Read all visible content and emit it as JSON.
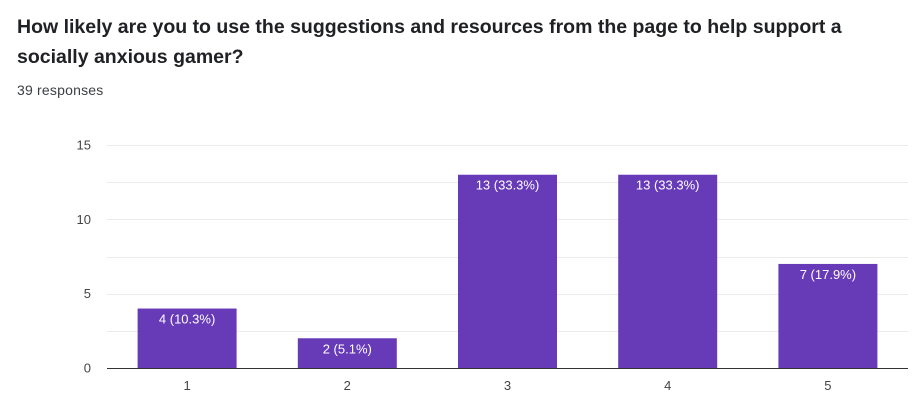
{
  "header": {
    "title": "How likely are you to use the suggestions and resources from the page to help support a socially anxious gamer?",
    "responses": "39 responses"
  },
  "colors": {
    "bar": "#673ab7",
    "grid": "#ebebeb",
    "axis": "#333333"
  },
  "chart_data": {
    "type": "bar",
    "title": "How likely are you to use the suggestions and resources from the page to help support a socially anxious gamer?",
    "xlabel": "",
    "ylabel": "",
    "categories": [
      "1",
      "2",
      "3",
      "4",
      "5"
    ],
    "values": [
      4,
      2,
      13,
      13,
      7
    ],
    "data_labels": [
      "4 (10.3%)",
      "2 (5.1%)",
      "13 (33.3%)",
      "13 (33.3%)",
      "7 (17.9%)"
    ],
    "ylim": [
      0,
      15
    ],
    "yticks": [
      0,
      5,
      10,
      15
    ],
    "grid": true,
    "legend": "none"
  }
}
